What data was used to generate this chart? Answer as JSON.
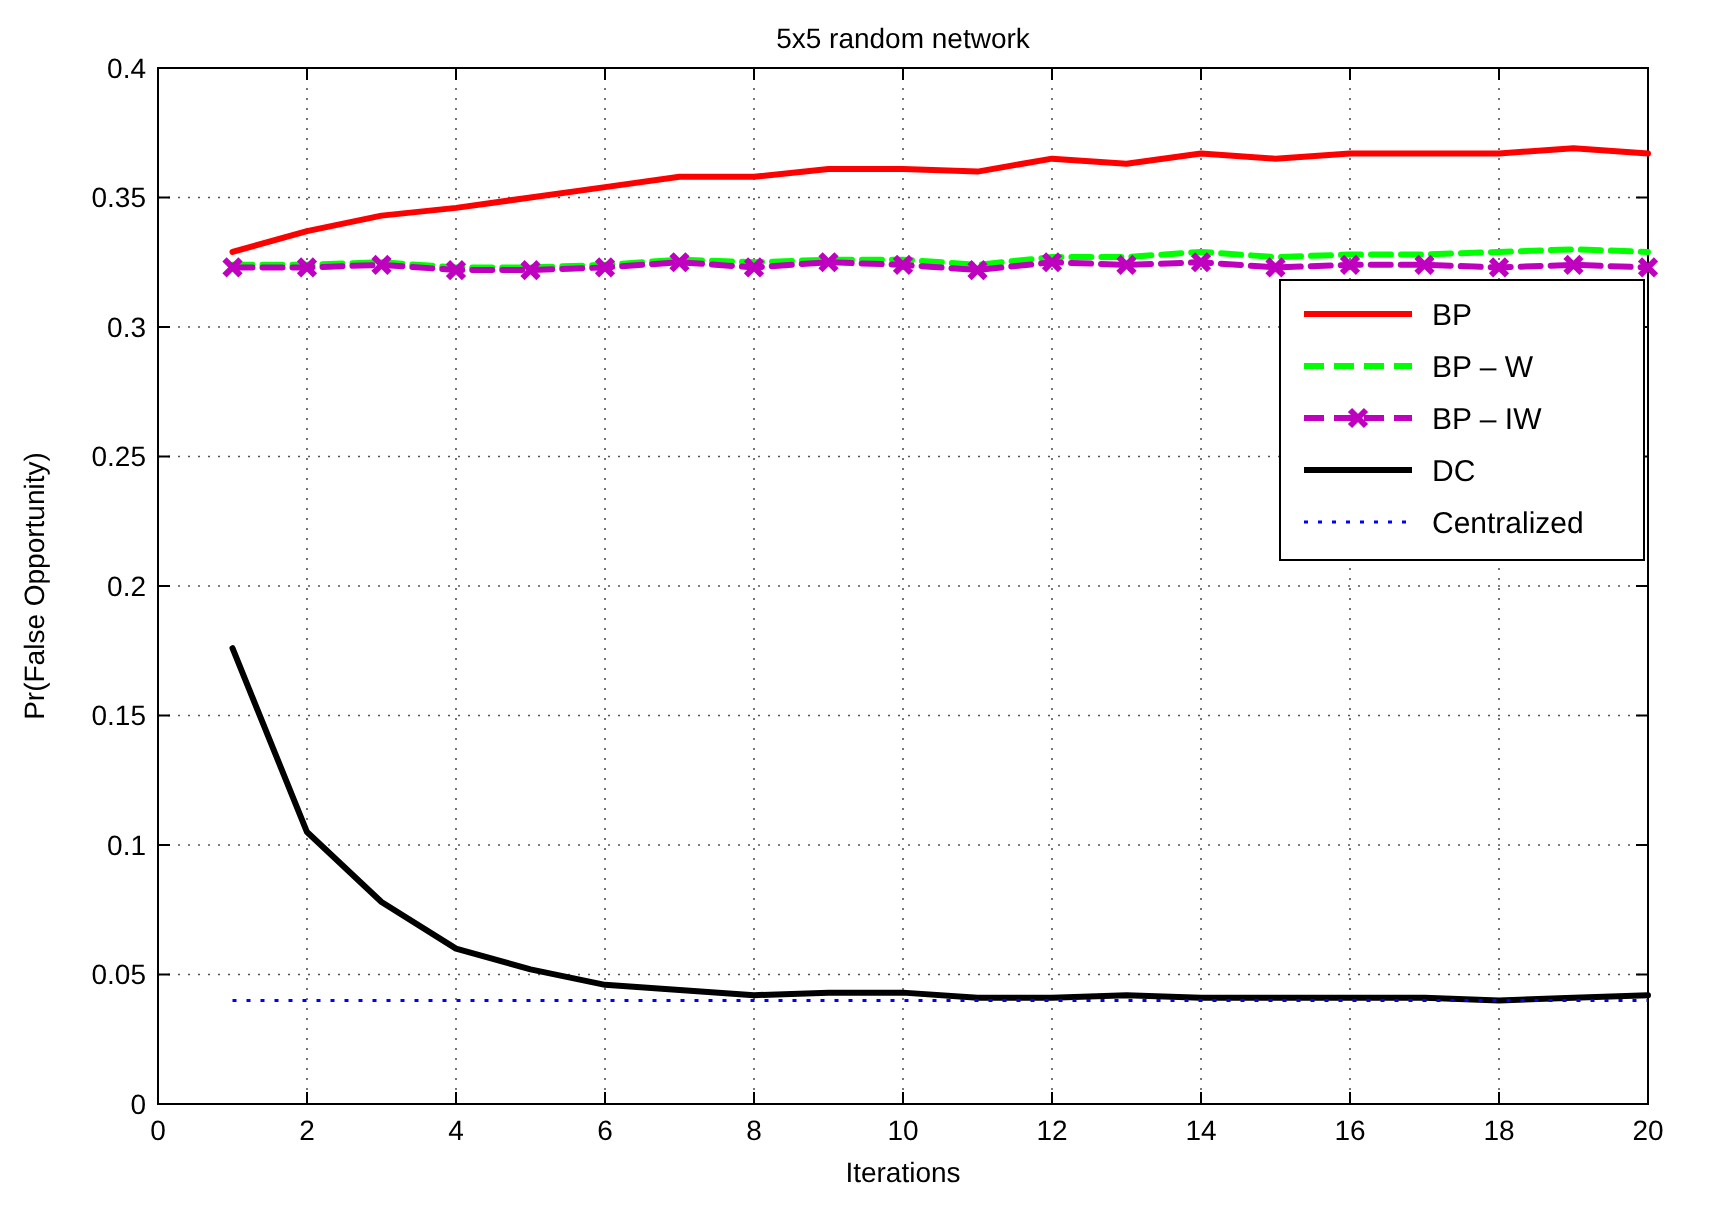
{
  "chart_data": {
    "type": "line",
    "title": "5x5 random network",
    "xlabel": "Iterations",
    "ylabel": "Pr(False Opportunity)",
    "x": [
      1,
      2,
      3,
      4,
      5,
      6,
      7,
      8,
      9,
      10,
      11,
      12,
      13,
      14,
      15,
      16,
      17,
      18,
      19,
      20
    ],
    "xlim": [
      0,
      20
    ],
    "xticks": [
      0,
      2,
      4,
      6,
      8,
      10,
      12,
      14,
      16,
      18,
      20
    ],
    "ylim": [
      0,
      0.4
    ],
    "yticks": [
      0,
      0.05,
      0.1,
      0.15,
      0.2,
      0.25,
      0.3,
      0.35,
      0.4
    ],
    "grid": true,
    "legend": "right",
    "series": [
      {
        "name": "BP",
        "color": "#ff0000",
        "line_style": "solid",
        "marker": "none",
        "values": [
          0.329,
          0.337,
          0.343,
          0.346,
          0.35,
          0.354,
          0.358,
          0.358,
          0.361,
          0.361,
          0.36,
          0.365,
          0.363,
          0.367,
          0.365,
          0.367,
          0.367,
          0.367,
          0.369,
          0.367
        ]
      },
      {
        "name": "BP – W",
        "color": "#00ff00",
        "line_style": "dashed",
        "marker": "none",
        "values": [
          0.324,
          0.324,
          0.325,
          0.323,
          0.323,
          0.324,
          0.326,
          0.325,
          0.326,
          0.326,
          0.324,
          0.327,
          0.327,
          0.329,
          0.327,
          0.328,
          0.328,
          0.329,
          0.33,
          0.329
        ]
      },
      {
        "name": "BP – IW",
        "color": "#bf00bf",
        "line_style": "dashed",
        "marker": "cross",
        "values": [
          0.323,
          0.323,
          0.324,
          0.322,
          0.322,
          0.323,
          0.325,
          0.323,
          0.325,
          0.324,
          0.322,
          0.325,
          0.324,
          0.325,
          0.323,
          0.324,
          0.324,
          0.323,
          0.324,
          0.323
        ]
      },
      {
        "name": "DC",
        "color": "#000000",
        "line_style": "solid",
        "marker": "none",
        "values": [
          0.176,
          0.105,
          0.078,
          0.06,
          0.052,
          0.046,
          0.044,
          0.042,
          0.043,
          0.043,
          0.041,
          0.041,
          0.042,
          0.041,
          0.041,
          0.041,
          0.041,
          0.04,
          0.041,
          0.042
        ]
      },
      {
        "name": "Centralized",
        "color": "#0000ff",
        "line_style": "dotted",
        "marker": "none",
        "values": [
          0.04,
          0.04,
          0.04,
          0.04,
          0.04,
          0.04,
          0.04,
          0.04,
          0.04,
          0.04,
          0.04,
          0.04,
          0.04,
          0.04,
          0.04,
          0.04,
          0.04,
          0.04,
          0.04,
          0.04
        ]
      }
    ]
  }
}
